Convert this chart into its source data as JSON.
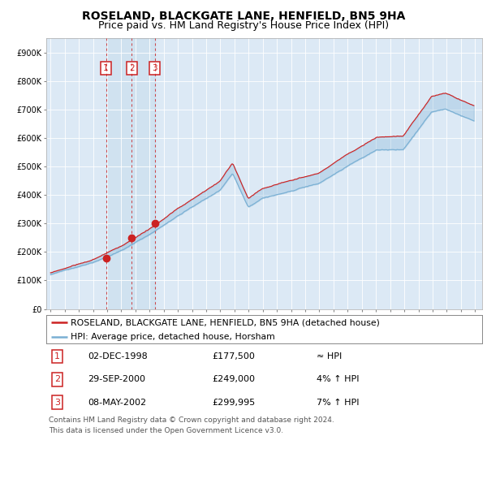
{
  "title": "ROSELAND, BLACKGATE LANE, HENFIELD, BN5 9HA",
  "subtitle": "Price paid vs. HM Land Registry's House Price Index (HPI)",
  "transactions": [
    {
      "label": "1",
      "date_num": 1998.92,
      "date_label": "02-DEC-1998",
      "price": 177500,
      "note": "≈ HPI"
    },
    {
      "label": "2",
      "date_num": 2000.75,
      "date_label": "29-SEP-2000",
      "price": 249000,
      "note": "4% ↑ HPI"
    },
    {
      "label": "3",
      "date_num": 2002.36,
      "date_label": "08-MAY-2002",
      "price": 299995,
      "note": "7% ↑ HPI"
    }
  ],
  "legend_line1": "ROSELAND, BLACKGATE LANE, HENFIELD, BN5 9HA (detached house)",
  "legend_line2": "HPI: Average price, detached house, Horsham",
  "footer1": "Contains HM Land Registry data © Crown copyright and database right 2024.",
  "footer2": "This data is licensed under the Open Government Licence v3.0.",
  "hpi_color": "#7ab0d4",
  "price_color": "#cc2222",
  "bg_color": "#dce9f5",
  "ylim": [
    0,
    950000
  ],
  "yticks": [
    0,
    100000,
    200000,
    300000,
    400000,
    500000,
    600000,
    700000,
    800000,
    900000
  ],
  "xlim_start": 1994.7,
  "xlim_end": 2025.5,
  "title_fontsize": 10,
  "subtitle_fontsize": 9
}
